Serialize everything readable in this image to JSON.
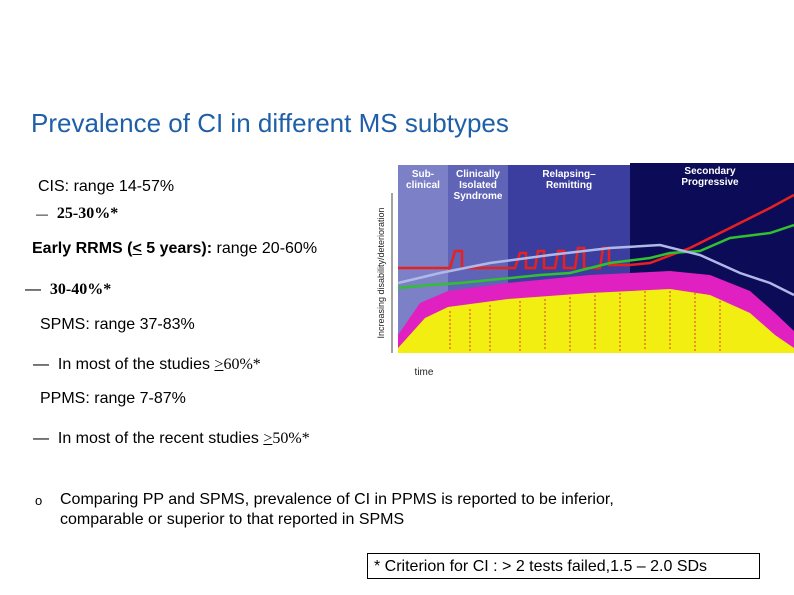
{
  "title": "Prevalence of CI in different MS subtypes",
  "marks": {
    "dash": "—",
    "bullet": "o"
  },
  "cis": {
    "name": "CIS",
    "range": ": range 14-57%",
    "detail": "25-30%*"
  },
  "early_rrms": {
    "name": "Early RRMS (",
    "le": "<",
    "rest": " 5 years):",
    "range": " range 20-60%",
    "detail": "30-40%*"
  },
  "spms": {
    "name": "SPMS",
    "range": ": range 37-83%",
    "detail": "In most of the studies ",
    "ge": ">",
    "value": "60%*"
  },
  "ppms": {
    "name": "PPMS",
    "range": ": range  7-87%",
    "detail": "In most of the recent studies ",
    "ge": ">",
    "value": "50%*"
  },
  "comparison": "Comparing PP and SPMS, prevalence of CI in PPMS is reported to be inferior, comparable or superior to that reported in SPMS",
  "footnote": "* Criterion for CI : > 2 tests failed,1.5 – 2.0 SDs",
  "figure": {
    "phases": [
      [
        "Sub-",
        "clinical"
      ],
      [
        "Clinically",
        "Isolated",
        "Syndrome"
      ],
      [
        "Relapsing–",
        "Remitting"
      ],
      [
        "Secondary",
        "Progressive"
      ]
    ],
    "y_label": "Increasing disability/deterioration",
    "x_label": "time"
  }
}
